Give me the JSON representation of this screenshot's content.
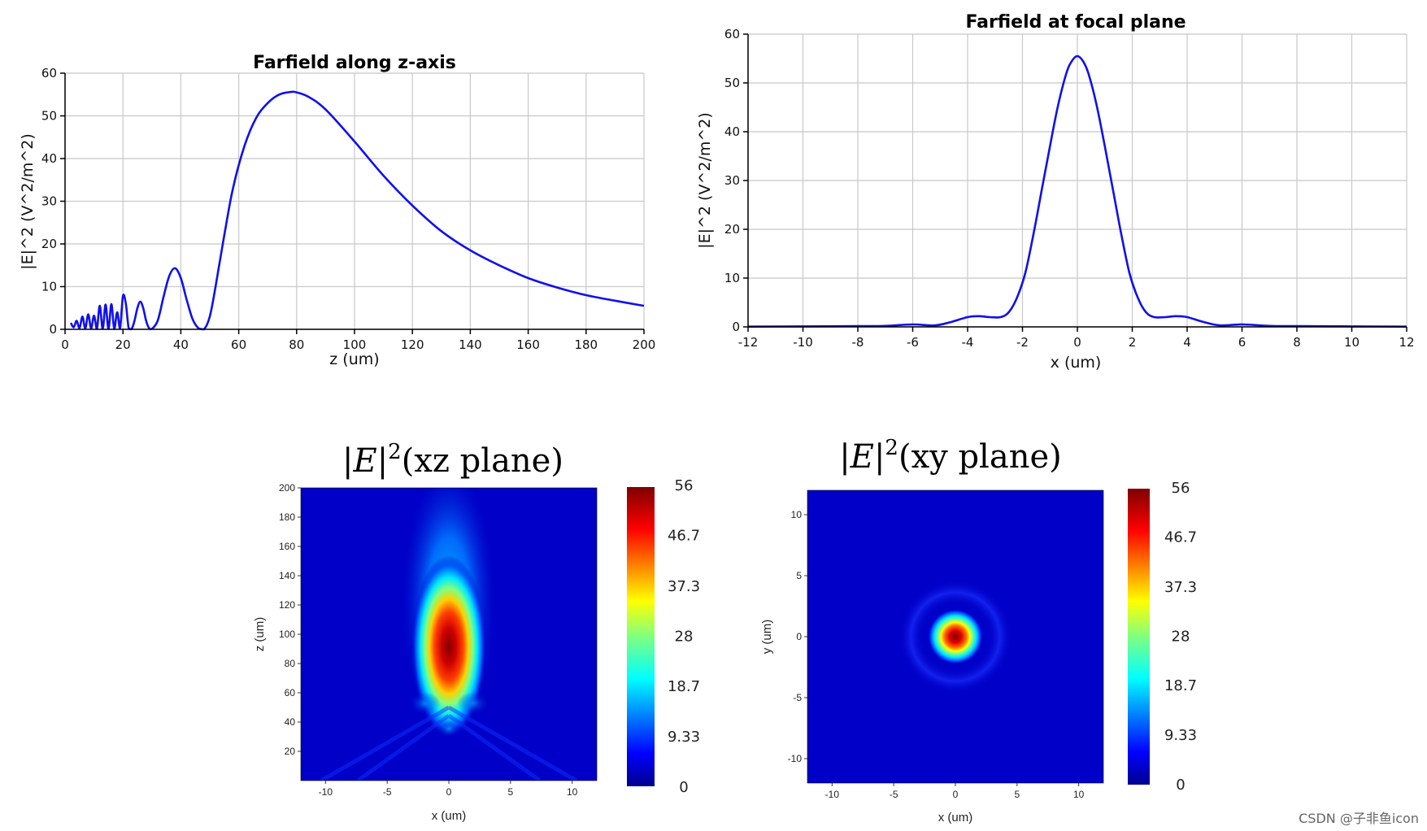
{
  "chart_data": [
    {
      "type": "line",
      "title": "Farfield along z-axis",
      "xlabel": "z (um)",
      "ylabel": "|E|^2 (V^2/m^2)",
      "xlim": [
        0,
        200
      ],
      "ylim": [
        0,
        60
      ],
      "xticks": [
        "0",
        "20",
        "40",
        "60",
        "80",
        "100",
        "120",
        "140",
        "160",
        "180",
        "200"
      ],
      "yticks": [
        "0",
        "10",
        "20",
        "30",
        "40",
        "50",
        "60"
      ],
      "grid": true,
      "series": [
        {
          "name": "|E|^2",
          "color": "#1010ee",
          "x": [
            2,
            3,
            4,
            5,
            6,
            7,
            8,
            9,
            10,
            11,
            12,
            13,
            14,
            15,
            16,
            17,
            18,
            19,
            20,
            21,
            22,
            23,
            24,
            25,
            26,
            27,
            28,
            29,
            30,
            32,
            34,
            36,
            38,
            40,
            42,
            44,
            46,
            48,
            50,
            52,
            55,
            58,
            62,
            66,
            70,
            74,
            78,
            80,
            84,
            90,
            100,
            110,
            120,
            130,
            140,
            150,
            160,
            170,
            180,
            190,
            200
          ],
          "y": [
            1.5,
            0.5,
            2.0,
            0.3,
            3.0,
            0.2,
            3.5,
            0.2,
            3.2,
            0.1,
            5.5,
            0.1,
            5.8,
            0.1,
            5.9,
            0.1,
            4.0,
            0.2,
            7.8,
            6.0,
            0.2,
            0.1,
            2.0,
            5.0,
            6.5,
            5.0,
            2.0,
            0.3,
            0.1,
            2.0,
            7.5,
            12.5,
            14.3,
            12.0,
            7.0,
            2.5,
            0.3,
            0.0,
            3.0,
            10.0,
            22.0,
            33.0,
            43.0,
            49.5,
            53.0,
            55.0,
            55.6,
            55.5,
            54.5,
            51.5,
            44.0,
            36.0,
            29.0,
            23.0,
            18.5,
            15.0,
            12.0,
            9.8,
            8.0,
            6.7,
            5.5
          ]
        }
      ]
    },
    {
      "type": "line",
      "title": "Farfield at focal plane",
      "xlabel": "x (um)",
      "ylabel": "|E|^2 (V^2/m^2)",
      "xlim": [
        -12,
        12
      ],
      "ylim": [
        0,
        60
      ],
      "xticks": [
        "-12",
        "-10",
        "-8",
        "-6",
        "-4",
        "-2",
        "0",
        "2",
        "4",
        "6",
        "8",
        "10",
        "12"
      ],
      "yticks": [
        "0",
        "10",
        "20",
        "30",
        "40",
        "50",
        "60"
      ],
      "grid": true,
      "series": [
        {
          "name": "|E|^2",
          "color": "#1010ee",
          "x": [
            -12,
            -10,
            -8,
            -7,
            -6,
            -5.2,
            -4.6,
            -4,
            -3.6,
            -3.2,
            -2.8,
            -2.5,
            -2.2,
            -1.9,
            -1.6,
            -1.3,
            -1,
            -0.7,
            -0.4,
            -0.2,
            0,
            0.2,
            0.4,
            0.7,
            1,
            1.3,
            1.6,
            1.9,
            2.2,
            2.5,
            2.8,
            3.2,
            3.6,
            4,
            4.6,
            5.2,
            6,
            7,
            8,
            10,
            12
          ],
          "y": [
            0.05,
            0.1,
            0.15,
            0.2,
            0.5,
            0.3,
            1.0,
            2.0,
            2.2,
            2.0,
            2.0,
            3.0,
            6.0,
            11.0,
            19.0,
            28.0,
            37.0,
            45.5,
            52.0,
            54.5,
            55.5,
            54.5,
            52.0,
            45.5,
            37.0,
            28.0,
            19.0,
            11.0,
            6.0,
            3.0,
            2.0,
            2.0,
            2.2,
            2.0,
            1.0,
            0.3,
            0.5,
            0.2,
            0.15,
            0.1,
            0.05
          ]
        }
      ]
    },
    {
      "type": "heatmap",
      "title_base": "|E|",
      "title_sup": "2",
      "title_rest": "(xz plane)",
      "xlabel": "x (um)",
      "ylabel": "z (um)",
      "xlim": [
        -12,
        12
      ],
      "ylim": [
        0,
        200
      ],
      "xticks": [
        "-10",
        "-5",
        "0",
        "5",
        "10"
      ],
      "yticks": [
        "20",
        "40",
        "60",
        "80",
        "100",
        "120",
        "140",
        "160",
        "180",
        "200"
      ],
      "colorbar_ticks": [
        "0",
        "9.33",
        "18.7",
        "28",
        "37.3",
        "46.7",
        "56"
      ],
      "vmin": 0,
      "vmax": 56,
      "colormap": "jet"
    },
    {
      "type": "heatmap",
      "title_base": "|E|",
      "title_sup": "2",
      "title_rest": "(xy plane)",
      "xlabel": "x (um)",
      "ylabel": "y (um)",
      "xlim": [
        -12,
        12
      ],
      "ylim": [
        -12,
        12
      ],
      "xticks": [
        "-10",
        "-5",
        "0",
        "5",
        "10"
      ],
      "yticks": [
        "-10",
        "-5",
        "0",
        "5",
        "10"
      ],
      "colorbar_ticks": [
        "0",
        "9.33",
        "18.7",
        "28",
        "37.3",
        "46.7",
        "56"
      ],
      "vmin": 0,
      "vmax": 56,
      "colormap": "jet"
    }
  ],
  "watermark": "CSDN @子非鱼icon"
}
